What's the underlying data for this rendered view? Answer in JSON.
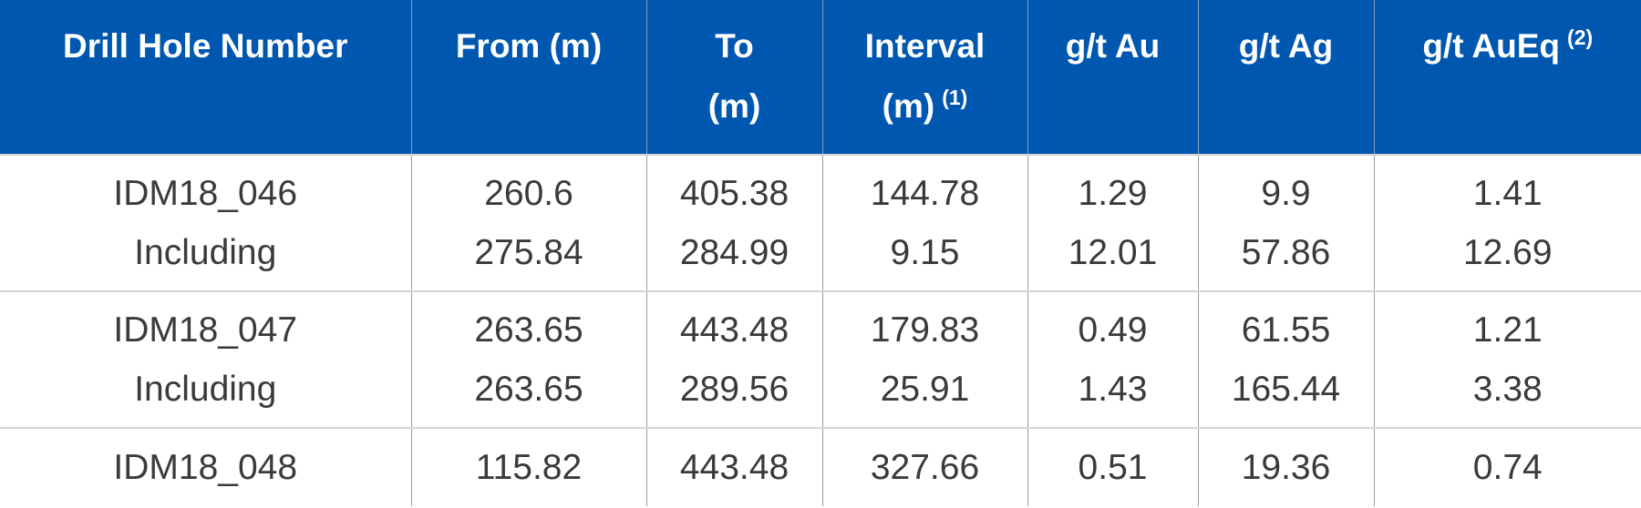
{
  "table": {
    "header": [
      {
        "lines": [
          "Drill Hole Number"
        ]
      },
      {
        "lines": [
          "From (m)"
        ]
      },
      {
        "lines": [
          "To",
          "(m)"
        ]
      },
      {
        "lines": [
          "Interval",
          "(m)"
        ],
        "sup": "(1)"
      },
      {
        "lines": [
          "g/t Au"
        ]
      },
      {
        "lines": [
          "g/t Ag"
        ]
      },
      {
        "lines": [
          "g/t AuEq"
        ],
        "sup": "(2)"
      }
    ],
    "rows": [
      [
        [
          "IDM18_046",
          "260.6",
          "405.38",
          "144.78",
          "1.29",
          "9.9",
          "1.41"
        ],
        [
          "Including",
          "275.84",
          "284.99",
          "9.15",
          "12.01",
          "57.86",
          "12.69"
        ]
      ],
      [
        [
          "IDM18_047",
          "263.65",
          "443.48",
          "179.83",
          "0.49",
          "61.55",
          "1.21"
        ],
        [
          "Including",
          "263.65",
          "289.56",
          "25.91",
          "1.43",
          "165.44",
          "3.38"
        ]
      ],
      [
        [
          "IDM18_048",
          "115.82",
          "443.48",
          "327.66",
          "0.51",
          "19.36",
          "0.74"
        ]
      ]
    ]
  }
}
